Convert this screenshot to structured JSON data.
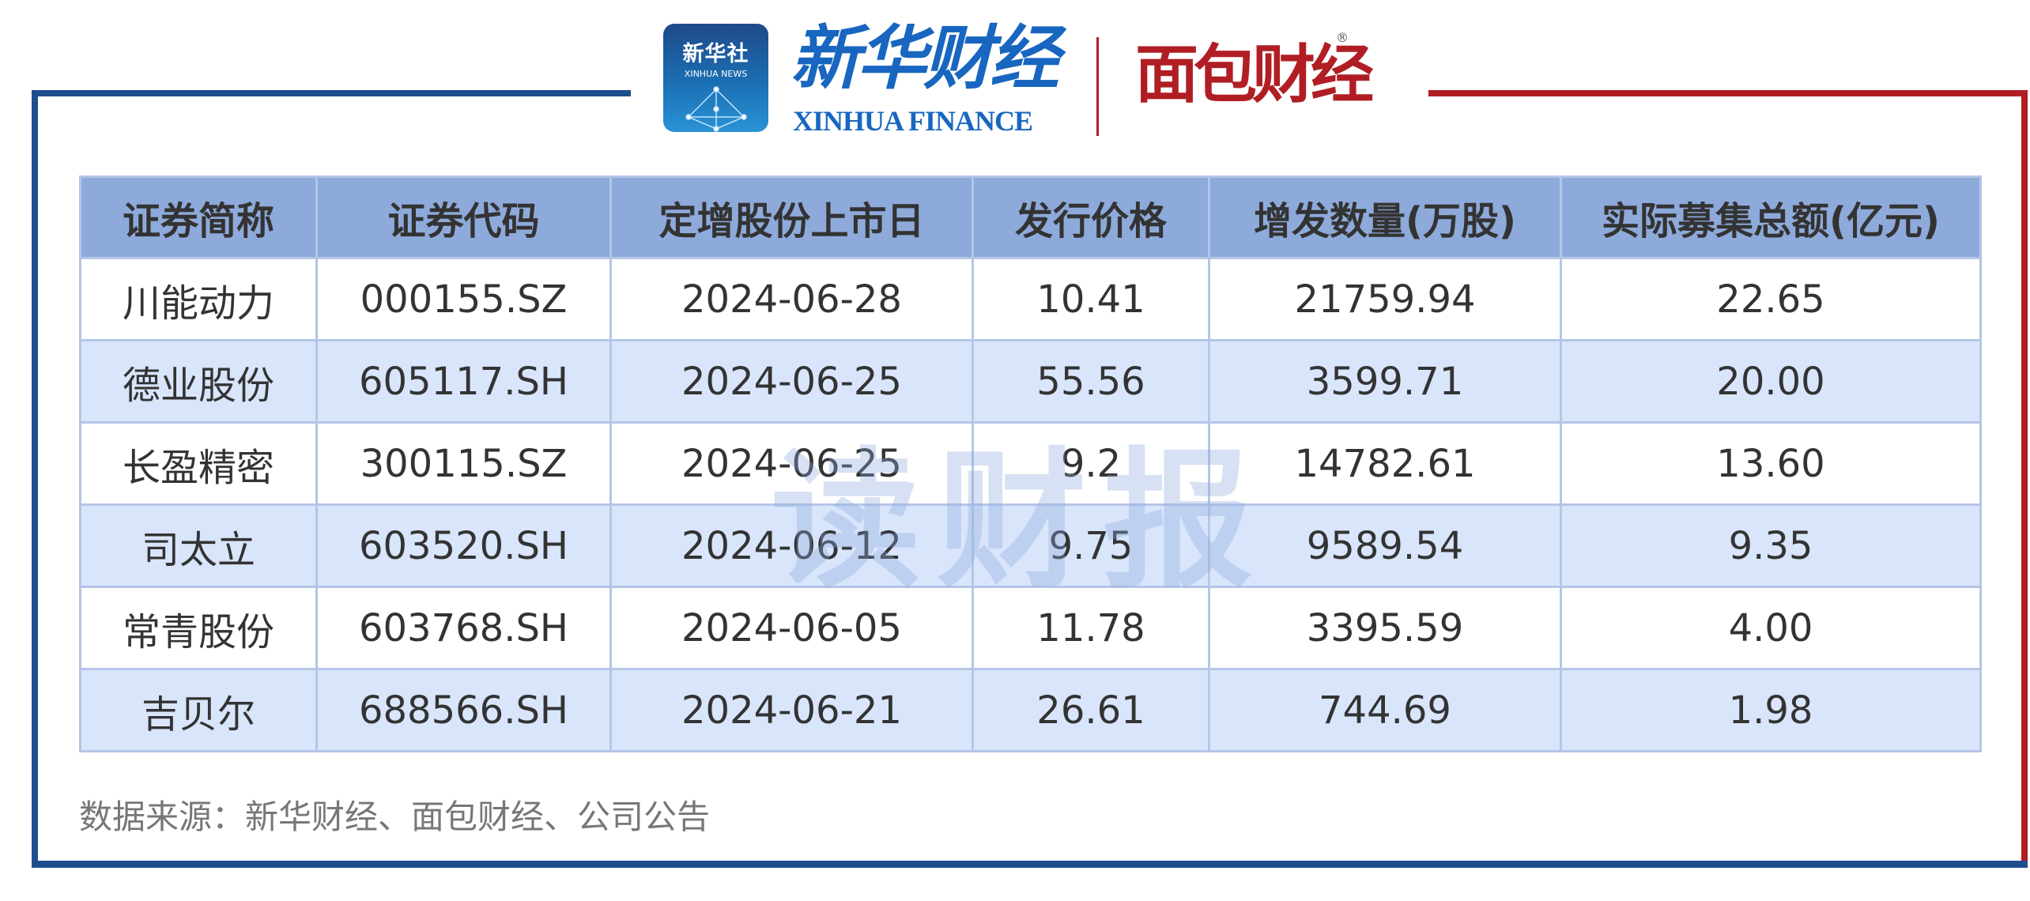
{
  "header": {
    "xinhua_news_cn": "新华社",
    "xinhua_news_en": "XINHUA NEWS",
    "xinhua_finance_cn": "新华财经",
    "xinhua_finance_en": "XINHUA FINANCE",
    "mianbao_finance": "面包财经",
    "brand_colors": {
      "blue": "#1f4e8f",
      "red": "#b01e24"
    }
  },
  "table": {
    "columns": [
      "证券简称",
      "证券代码",
      "定增股份上市日",
      "发行价格",
      "增发数量(万股)",
      "实际募集总额(亿元)"
    ],
    "rows": [
      [
        "川能动力",
        "000155.SZ",
        "2024-06-28",
        "10.41",
        "21759.94",
        "22.65"
      ],
      [
        "德业股份",
        "605117.SH",
        "2024-06-25",
        "55.56",
        "3599.71",
        "20.00"
      ],
      [
        "长盈精密",
        "300115.SZ",
        "2024-06-25",
        "9.2",
        "14782.61",
        "13.60"
      ],
      [
        "司太立",
        "603520.SH",
        "2024-06-12",
        "9.75",
        "9589.54",
        "9.35"
      ],
      [
        "常青股份",
        "603768.SH",
        "2024-06-05",
        "11.78",
        "3395.59",
        "4.00"
      ],
      [
        "吉贝尔",
        "688566.SH",
        "2024-06-21",
        "26.61",
        "744.69",
        "1.98"
      ]
    ]
  },
  "watermark": "读财报",
  "source": "数据来源：新华财经、面包财经、公司公告"
}
